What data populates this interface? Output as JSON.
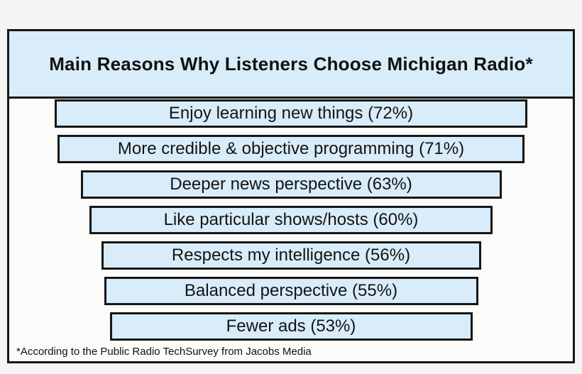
{
  "footnote": "*According to the Public Radio TechSurvey from Jacobs Media",
  "colors": {
    "bar_fill": "#d8ecf9",
    "border": "#161616",
    "text": "#111111",
    "page_background": "#f5f4f2",
    "panel_background": "#fbfbfa"
  },
  "chart_data": {
    "type": "bar",
    "orientation": "horizontal",
    "layout": "centered-funnel",
    "title": "Main Reasons Why Listeners Choose Michigan Radio*",
    "categories": [
      "Enjoy learning new things",
      "More credible & objective programming",
      "Deeper news perspective",
      "Like particular shows/hosts",
      "Respects my intelligence",
      "Balanced perspective",
      "Fewer ads"
    ],
    "values": [
      72,
      71,
      63,
      60,
      56,
      55,
      53
    ],
    "unit": "%",
    "bar_labels": [
      "Enjoy learning new things (72%)",
      "More credible & objective programming (71%)",
      "Deeper news perspective (63%)",
      "Like particular shows/hosts (60%)",
      "Respects my intelligence (56%)",
      "Balanced perspective (55%)",
      "Fewer ads (53%)"
    ],
    "value_range": [
      0,
      100
    ],
    "grid": false,
    "legend": false,
    "source_note": "*According to the Public Radio TechSurvey from Jacobs Media"
  }
}
